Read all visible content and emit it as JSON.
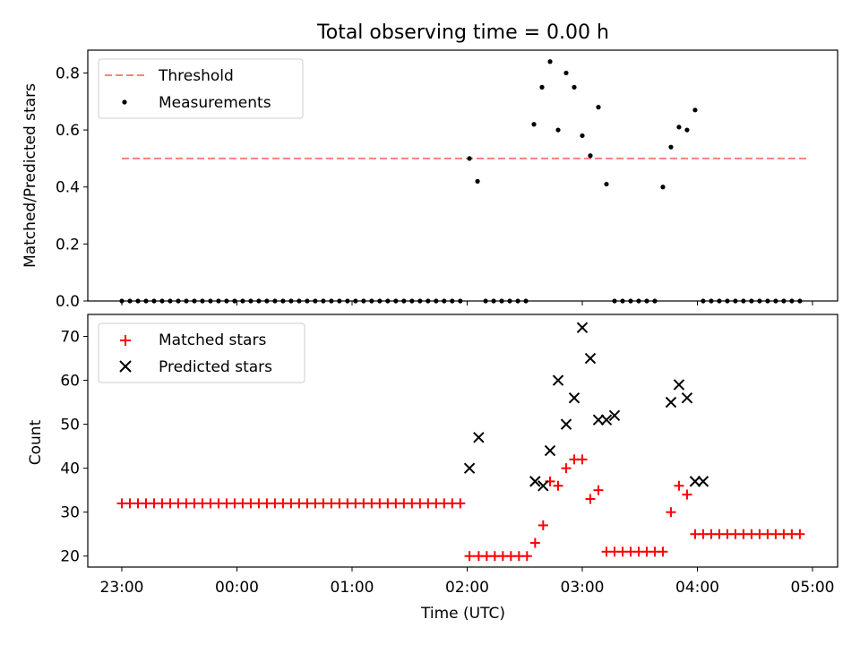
{
  "chart_data": [
    {
      "type": "scatter",
      "title": "Total observing time = 0.00 h",
      "xlabel": "",
      "ylabel": "Matched/Predicted stars",
      "ylim": [
        0.0,
        0.88
      ],
      "y_ticks": [
        "0.0",
        "0.2",
        "0.4",
        "0.6",
        "0.8"
      ],
      "x_tick_values": [
        0,
        1,
        2,
        3,
        4,
        5,
        6
      ],
      "legend_position": "top-left",
      "threshold": {
        "name": "Threshold",
        "value": 0.5,
        "x_range": [
          0.0,
          5.95
        ],
        "color": "#ff7f7f",
        "style": "dashed"
      },
      "series": [
        {
          "name": "Measurements",
          "marker": "dot",
          "color": "#000000",
          "x": [
            0.0,
            0.07,
            0.14,
            0.21,
            0.28,
            0.35,
            0.42,
            0.49,
            0.56,
            0.63,
            0.7,
            0.77,
            0.84,
            0.91,
            0.98,
            1.05,
            1.12,
            1.19,
            1.26,
            1.33,
            1.4,
            1.47,
            1.54,
            1.61,
            1.68,
            1.75,
            1.82,
            1.89,
            1.96,
            2.03,
            2.1,
            2.17,
            2.24,
            2.31,
            2.38,
            2.45,
            2.52,
            2.59,
            2.66,
            2.73,
            2.8,
            2.87,
            2.94,
            3.02,
            3.09,
            3.16,
            3.23,
            3.3,
            3.37,
            3.44,
            3.51,
            3.58,
            3.65,
            3.72,
            3.79,
            3.86,
            3.93,
            4.0,
            4.07,
            4.14,
            4.21,
            4.28,
            4.35,
            4.42,
            4.49,
            4.56,
            4.63,
            4.7,
            4.77,
            4.84,
            4.91,
            4.98,
            5.05,
            5.12,
            5.19,
            5.26,
            5.33,
            5.4,
            5.47,
            5.54,
            5.61,
            5.68,
            5.75,
            5.82,
            5.89
          ],
          "y": [
            0,
            0,
            0,
            0,
            0,
            0,
            0,
            0,
            0,
            0,
            0,
            0,
            0,
            0,
            0,
            0,
            0,
            0,
            0,
            0,
            0,
            0,
            0,
            0,
            0,
            0,
            0,
            0,
            0,
            0,
            0,
            0,
            0,
            0,
            0,
            0,
            0,
            0,
            0,
            0,
            0,
            0,
            0,
            0.5,
            0.42,
            0,
            0,
            0,
            0,
            0,
            0,
            0.62,
            0.75,
            0.84,
            0.6,
            0.8,
            0.75,
            0.58,
            0.51,
            0.68,
            0.41,
            0,
            0,
            0,
            0,
            0,
            0,
            0.4,
            0.54,
            0.61,
            0.6,
            0.67,
            0,
            0,
            0,
            0,
            0,
            0,
            0,
            0,
            0,
            0,
            0,
            0,
            0
          ]
        }
      ]
    },
    {
      "type": "scatter",
      "title": "",
      "xlabel": "Time (UTC)",
      "ylabel": "Count",
      "ylim": [
        17.5,
        75
      ],
      "y_ticks": [
        "20",
        "30",
        "40",
        "50",
        "60",
        "70"
      ],
      "x_ticks": [
        "23:00",
        "00:00",
        "01:00",
        "02:00",
        "03:00",
        "04:00",
        "05:00"
      ],
      "x_tick_values": [
        0,
        1,
        2,
        3,
        4,
        5,
        6
      ],
      "legend_position": "top-left",
      "series": [
        {
          "name": "Matched stars",
          "marker": "plus",
          "color": "#ff0000",
          "x": [
            0.0,
            0.07,
            0.14,
            0.21,
            0.28,
            0.35,
            0.42,
            0.49,
            0.56,
            0.63,
            0.7,
            0.77,
            0.84,
            0.91,
            0.98,
            1.05,
            1.12,
            1.19,
            1.26,
            1.33,
            1.4,
            1.47,
            1.54,
            1.61,
            1.68,
            1.75,
            1.82,
            1.89,
            1.96,
            2.03,
            2.1,
            2.17,
            2.24,
            2.31,
            2.38,
            2.45,
            2.52,
            2.59,
            2.66,
            2.73,
            2.8,
            2.87,
            2.94,
            3.02,
            3.1,
            3.17,
            3.24,
            3.31,
            3.38,
            3.45,
            3.52,
            3.59,
            3.66,
            3.72,
            3.79,
            3.86,
            3.93,
            4.0,
            4.07,
            4.14,
            4.21,
            4.28,
            4.35,
            4.42,
            4.49,
            4.56,
            4.63,
            4.7,
            4.77,
            4.84,
            4.91,
            4.98,
            5.05,
            5.12,
            5.19,
            5.26,
            5.33,
            5.4,
            5.47,
            5.54,
            5.61,
            5.68,
            5.75,
            5.82,
            5.89
          ],
          "y": [
            32,
            32,
            32,
            32,
            32,
            32,
            32,
            32,
            32,
            32,
            32,
            32,
            32,
            32,
            32,
            32,
            32,
            32,
            32,
            32,
            32,
            32,
            32,
            32,
            32,
            32,
            32,
            32,
            32,
            32,
            32,
            32,
            32,
            32,
            32,
            32,
            32,
            32,
            32,
            32,
            32,
            32,
            32,
            20,
            20,
            20,
            20,
            20,
            20,
            20,
            20,
            23,
            27,
            37,
            36,
            40,
            42,
            42,
            33,
            35,
            21,
            21,
            21,
            21,
            21,
            21,
            21,
            21,
            30,
            36,
            34,
            25,
            25,
            25,
            25,
            25,
            25,
            25,
            25,
            25,
            25,
            25,
            25,
            25,
            25
          ]
        },
        {
          "name": "Predicted stars",
          "marker": "x",
          "color": "#000000",
          "x": [
            3.02,
            3.1,
            3.59,
            3.66,
            3.72,
            3.79,
            3.86,
            3.93,
            4.0,
            4.07,
            4.14,
            4.21,
            4.28,
            4.77,
            4.84,
            4.91,
            4.98,
            5.05
          ],
          "y": [
            40,
            47,
            37,
            36,
            44,
            60,
            50,
            56,
            72,
            65,
            51,
            51,
            52,
            55,
            59,
            56,
            37,
            37
          ]
        }
      ]
    }
  ]
}
